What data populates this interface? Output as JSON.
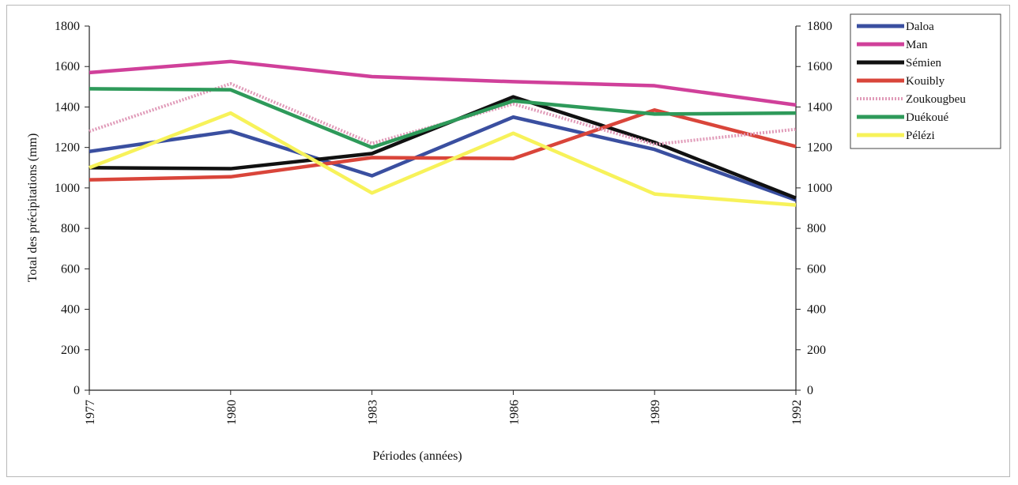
{
  "chart_data": {
    "type": "line",
    "title": "",
    "xlabel": "Périodes (années)",
    "ylabel": "Total des précipitations (mm)",
    "categories": [
      "1977",
      "1980",
      "1983",
      "1986",
      "1989",
      "1992"
    ],
    "ylim": [
      0,
      1800
    ],
    "yticks": [
      0,
      200,
      400,
      600,
      800,
      1000,
      1200,
      1400,
      1600,
      1800
    ],
    "secondary_y_axis": true,
    "grid": false,
    "legend_position": "top-right",
    "series": [
      {
        "name": "Daloa",
        "color": "#3a4fa0",
        "values": [
          1180,
          1280,
          1060,
          1350,
          1190,
          940
        ]
      },
      {
        "name": "Man",
        "color": "#d0409a",
        "values": [
          1570,
          1625,
          1550,
          1525,
          1505,
          1410
        ]
      },
      {
        "name": "Sémien",
        "color": "#111111",
        "values": [
          1100,
          1095,
          1170,
          1450,
          1225,
          950
        ]
      },
      {
        "name": "Kouibly",
        "color": "#d9453a",
        "values": [
          1040,
          1055,
          1150,
          1145,
          1385,
          1205
        ]
      },
      {
        "name": "Zoukougbeu",
        "color": "#e09ab8",
        "dotted": true,
        "values": [
          1280,
          1515,
          1220,
          1415,
          1215,
          1290
        ]
      },
      {
        "name": "Duékoué",
        "color": "#2e9a5a",
        "values": [
          1490,
          1485,
          1200,
          1430,
          1365,
          1370
        ]
      },
      {
        "name": "Pélézi",
        "color": "#f7f25a",
        "values": [
          1100,
          1370,
          975,
          1270,
          970,
          915
        ]
      }
    ]
  }
}
